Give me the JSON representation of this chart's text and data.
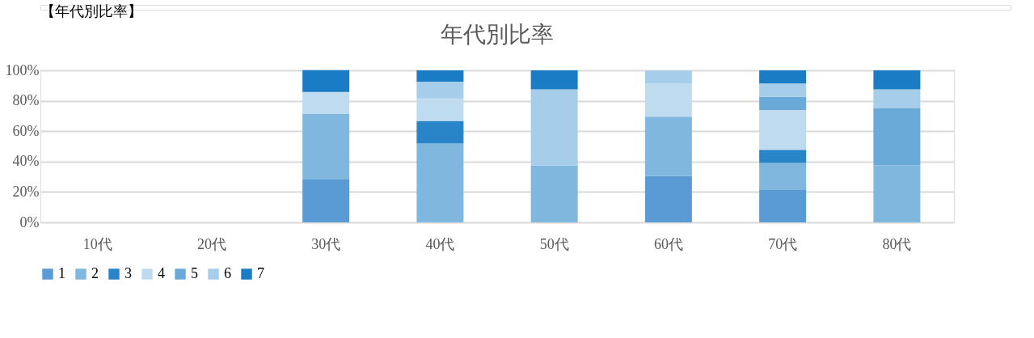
{
  "chart_data": {
    "type": "bar",
    "title": "年代別比率",
    "annotations": [
      "【年代別比率】"
    ],
    "categories": [
      "10代",
      "20代",
      "30代",
      "40代",
      "50代",
      "60代",
      "70代",
      "80代"
    ],
    "stacked": true,
    "ylim": [
      0,
      100
    ],
    "yticks": [
      {
        "value": 0,
        "label": "0%"
      },
      {
        "value": 20,
        "label": "20%"
      },
      {
        "value": 40,
        "label": "40%"
      },
      {
        "value": 60,
        "label": "60%"
      },
      {
        "value": 80,
        "label": "80%"
      },
      {
        "value": 100,
        "label": "100%"
      }
    ],
    "grid": "y",
    "legend": "bottom",
    "series": [
      {
        "name": "1",
        "color": "#5b9bd5",
        "values": [
          null,
          null,
          28.6,
          null,
          null,
          30.4,
          21.7,
          null
        ]
      },
      {
        "name": "2",
        "color": "#7fb7df",
        "values": [
          null,
          null,
          42.9,
          51.9,
          37.5,
          39.1,
          17.4,
          37.5
        ]
      },
      {
        "name": "3",
        "color": "#2a85c8",
        "values": [
          null,
          null,
          null,
          14.8,
          null,
          null,
          8.7,
          null
        ]
      },
      {
        "name": "4",
        "color": "#bfdbef",
        "values": [
          null,
          null,
          14.3,
          14.8,
          null,
          21.7,
          26.1,
          null
        ]
      },
      {
        "name": "5",
        "color": "#6aaad9",
        "values": [
          null,
          null,
          null,
          null,
          null,
          null,
          8.7,
          37.5
        ]
      },
      {
        "name": "6",
        "color": "#a6cdea",
        "values": [
          null,
          null,
          null,
          11.1,
          50.0,
          8.7,
          8.7,
          12.5
        ]
      },
      {
        "name": "7",
        "color": "#1a7cc4",
        "values": [
          null,
          null,
          14.3,
          7.4,
          12.5,
          null,
          8.7,
          12.5
        ]
      }
    ]
  }
}
